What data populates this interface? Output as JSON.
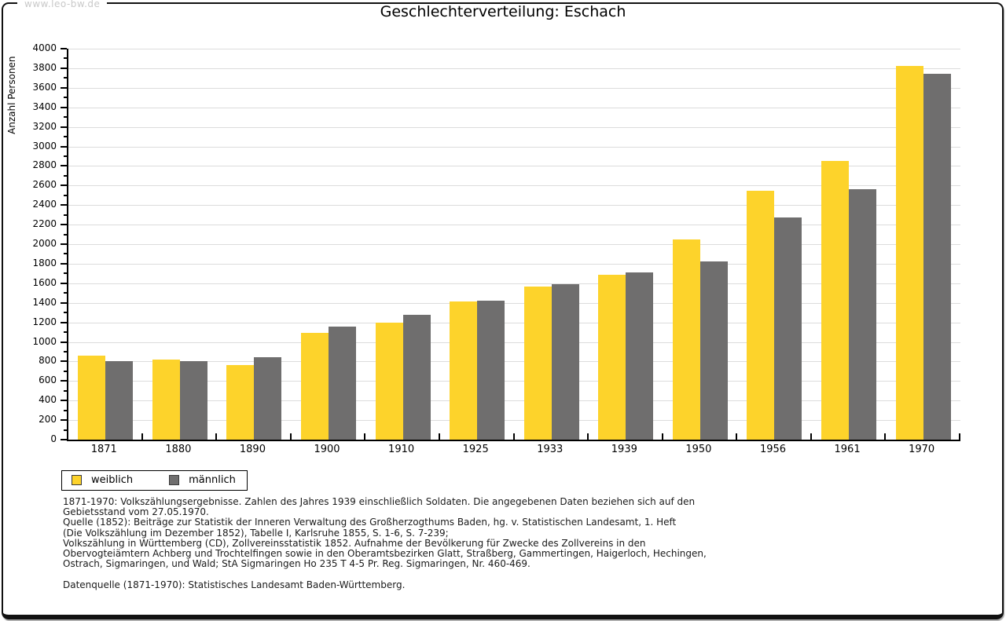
{
  "watermark": "www.leo-bw.de",
  "title": "Geschlechterverteilung: Eschach",
  "chart_data": {
    "type": "bar",
    "title": "Geschlechterverteilung: Eschach",
    "xlabel": "",
    "ylabel": "Anzahl Personen",
    "ylim": [
      0,
      4000
    ],
    "ytick_major_step": 200,
    "ytick_minor_step": 100,
    "grid": true,
    "legend_position": "bottom-left",
    "categories": [
      "1871",
      "1880",
      "1890",
      "1900",
      "1910",
      "1925",
      "1933",
      "1939",
      "1950",
      "1956",
      "1961",
      "1970"
    ],
    "series": [
      {
        "name": "weiblich",
        "color": "#FDD32B",
        "values": [
          860,
          820,
          765,
          1090,
          1200,
          1415,
          1565,
          1690,
          2050,
          2550,
          2855,
          3820
        ]
      },
      {
        "name": "männlich",
        "color": "#6F6E6E",
        "values": [
          800,
          800,
          845,
          1160,
          1280,
          1420,
          1590,
          1710,
          1820,
          2270,
          2560,
          3740
        ]
      }
    ]
  },
  "legend": {
    "items": [
      {
        "label": "weiblich",
        "color": "#FDD32B"
      },
      {
        "label": "männlich",
        "color": "#6F6E6E"
      }
    ]
  },
  "footnotes": {
    "lines": [
      "1871-1970: Volkszählungsergebnisse. Zahlen des Jahres 1939 einschließlich Soldaten. Die angegebenen Daten beziehen sich auf den",
      "Gebietsstand vom 27.05.1970.",
      "Quelle (1852): Beiträge zur Statistik der Inneren Verwaltung des Großherzogthums Baden, hg. v. Statistischen Landesamt, 1. Heft",
      "(Die Volkszählung im Dezember 1852), Tabelle I, Karlsruhe 1855, S. 1-6, S. 7-239;",
      "Volkszählung in Württemberg (CD), Zollvereinsstatistik 1852. Aufnahme der Bevölkerung für Zwecke des Zollvereins in den",
      "Obervogteiämtern Achberg und Trochtelfingen sowie in den Oberamtsbezirken Glatt, Straßberg, Gammertingen, Haigerloch, Hechingen,",
      "Ostrach, Sigmaringen, und Wald; StA Sigmaringen Ho 235 T 4-5 Pr. Reg. Sigmaringen, Nr. 460-469."
    ],
    "datasource": "Datenquelle (1871-1970): Statistisches Landesamt Baden-Württemberg."
  },
  "colors": {
    "female_bar": "#FDD32B",
    "male_bar": "#6F6E6E",
    "gridline": "#dcdcdc",
    "axis": "#000000",
    "watermark_text": "#c9c9c9"
  }
}
